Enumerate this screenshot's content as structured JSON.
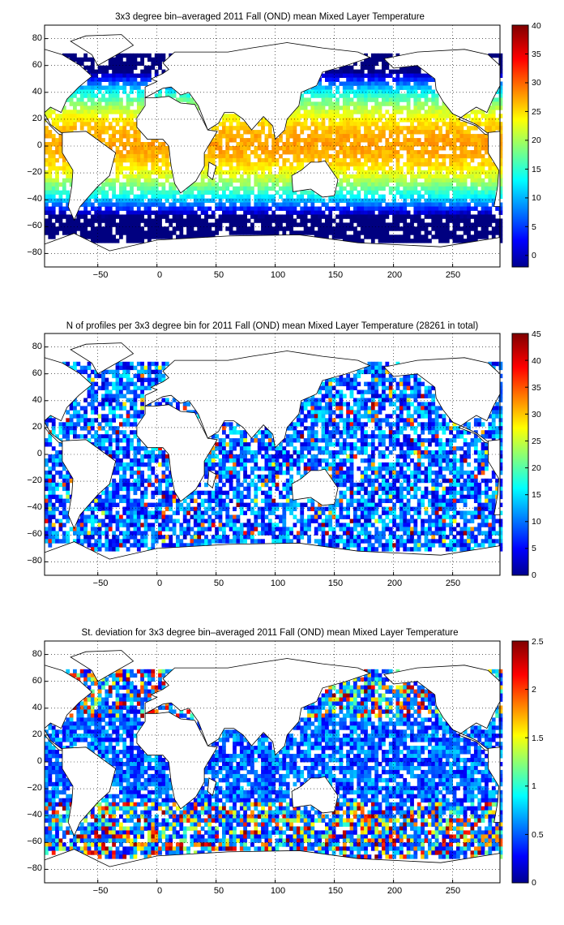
{
  "chart_data": [
    {
      "type": "heatmap",
      "title": "3x3 degree bin–averaged 2011 Fall (OND) mean Mixed Layer Temperature",
      "x_ticks": [
        "−50",
        "0",
        "50",
        "100",
        "150",
        "200",
        "250"
      ],
      "y_ticks": [
        "80",
        "60",
        "40",
        "20",
        "0",
        "−20",
        "−40",
        "−60",
        "−80"
      ],
      "xlim": [
        -95,
        290
      ],
      "ylim": [
        -90,
        90
      ],
      "grid": true,
      "colorbar": {
        "min": -2,
        "max": 40,
        "ticks": [
          "40",
          "35",
          "30",
          "25",
          "20",
          "15",
          "10",
          "5",
          "0"
        ],
        "tick_values": [
          40,
          35,
          30,
          25,
          20,
          15,
          10,
          5,
          0
        ]
      },
      "field": "temperature",
      "fill_fraction": 0.82
    },
    {
      "type": "heatmap",
      "title": "N of profiles per 3x3 degree bin for 2011 Fall (OND) mean Mixed Layer Temperature  (28261 in total)",
      "x_ticks": [
        "−50",
        "0",
        "50",
        "100",
        "150",
        "200",
        "250"
      ],
      "y_ticks": [
        "80",
        "60",
        "40",
        "20",
        "0",
        "−20",
        "−40",
        "−60",
        "−80"
      ],
      "xlim": [
        -95,
        290
      ],
      "ylim": [
        -90,
        90
      ],
      "grid": true,
      "colorbar": {
        "min": 0,
        "max": 45,
        "ticks": [
          "45",
          "40",
          "35",
          "30",
          "25",
          "20",
          "15",
          "10",
          "5",
          "0"
        ],
        "tick_values": [
          45,
          40,
          35,
          30,
          25,
          20,
          15,
          10,
          5,
          0
        ]
      },
      "field": "count",
      "fill_fraction": 0.72
    },
    {
      "type": "heatmap",
      "title": "St. deviation for 3x3 degree bin–averaged 2011 Fall (OND) mean Mixed Layer Temperature",
      "x_ticks": [
        "−50",
        "0",
        "50",
        "100",
        "150",
        "200",
        "250"
      ],
      "y_ticks": [
        "80",
        "60",
        "40",
        "20",
        "0",
        "−20",
        "−40",
        "−60",
        "−80"
      ],
      "xlim": [
        -95,
        290
      ],
      "ylim": [
        -90,
        90
      ],
      "grid": true,
      "colorbar": {
        "min": 0,
        "max": 2.5,
        "ticks": [
          "2.5",
          "2",
          "1.5",
          "1",
          "0.5",
          "0"
        ],
        "tick_values": [
          2.5,
          2,
          1.5,
          1,
          0.5,
          0
        ]
      },
      "field": "stdev",
      "fill_fraction": 0.8
    }
  ],
  "colors": {
    "jet_start": "#00008f",
    "jet_end": "#800000",
    "land": "#ffffff",
    "coast": "#000000",
    "grid": "#000000"
  }
}
